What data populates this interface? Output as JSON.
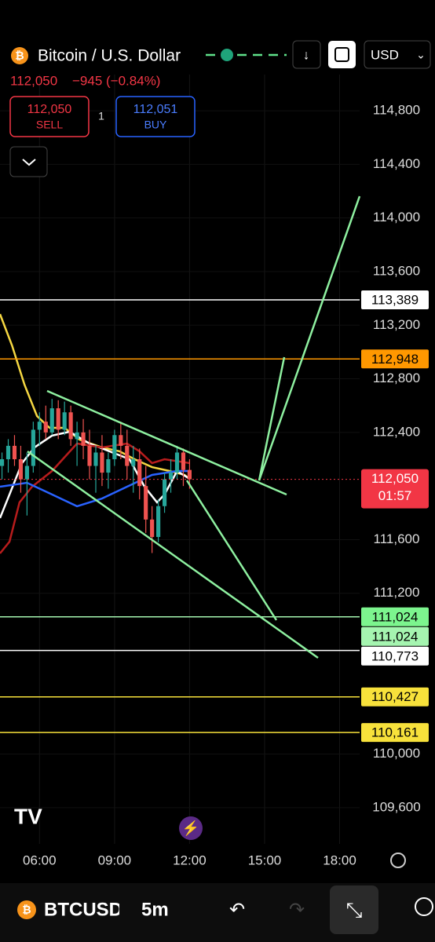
{
  "header": {
    "title": "Bitcoin / U.S. Dollar",
    "price": "112,050",
    "change": "−945 (−0.84%)",
    "sell_price": "112,050",
    "sell_label": "SELL",
    "spread": "1",
    "buy_price": "112,051",
    "buy_label": "BUY",
    "currency": "USD"
  },
  "chart_data": {
    "type": "candlestick",
    "x": [
      4.5,
      4.75,
      5.0,
      5.25,
      5.5,
      5.75,
      6.0,
      6.25,
      6.5,
      6.75,
      7.0,
      7.25,
      7.5,
      7.75,
      8.0,
      8.25,
      8.5,
      8.75,
      9.0,
      9.25,
      9.5,
      9.75,
      10.0,
      10.25,
      10.5,
      10.75,
      11.0,
      11.25,
      11.5,
      11.75,
      12.0
    ],
    "open": [
      112150,
      112200,
      112300,
      112200,
      112050,
      112150,
      112420,
      112480,
      112400,
      112580,
      112420,
      112550,
      112350,
      112400,
      112300,
      112150,
      112250,
      112100,
      112200,
      112380,
      112300,
      112150,
      112200,
      112000,
      111750,
      111620,
      111850,
      112050,
      112100,
      112250,
      112120
    ],
    "high": [
      112250,
      112350,
      112380,
      112300,
      112250,
      112480,
      112550,
      112600,
      112650,
      112640,
      112630,
      112600,
      112480,
      112500,
      112420,
      112300,
      112380,
      112250,
      112420,
      112480,
      112420,
      112300,
      112280,
      112150,
      111850,
      111900,
      112100,
      112200,
      112300,
      112280,
      112200
    ],
    "low": [
      112050,
      112100,
      112150,
      111950,
      111780,
      112100,
      112300,
      112350,
      112380,
      112350,
      112380,
      112300,
      112150,
      112200,
      112050,
      111950,
      112000,
      111980,
      112150,
      112200,
      112050,
      111950,
      111900,
      111650,
      111500,
      111580,
      111800,
      111950,
      112050,
      112000,
      111980
    ],
    "close": [
      112200,
      112300,
      112200,
      112050,
      112150,
      112420,
      112480,
      112400,
      112580,
      112420,
      112550,
      112350,
      112400,
      112300,
      112150,
      112250,
      112100,
      112200,
      112380,
      112300,
      112150,
      112200,
      112000,
      111750,
      111620,
      111850,
      112050,
      112100,
      112250,
      112120,
      112050
    ],
    "up_color": "#26a69a",
    "down_color": "#ef5350",
    "lines": [
      {
        "color": "#f5d742",
        "x": [
          4.42,
          4.9,
          5.4,
          5.9,
          6.4,
          7.0,
          7.6,
          8.5,
          9.2,
          9.8,
          10.5,
          11.2,
          11.8,
          12.0
        ],
        "values": [
          113283,
          113049,
          112756,
          112522,
          112434,
          112434,
          112346,
          112288,
          112259,
          112200,
          112141,
          112112,
          112083,
          112054
        ]
      },
      {
        "color": "#ffffff",
        "x": [
          4.42,
          4.8,
          5.3,
          5.8,
          6.5,
          7.2,
          8.0,
          8.8,
          9.6,
          10.2,
          10.7,
          11.0,
          11.5,
          12.0
        ],
        "values": [
          111761,
          111937,
          112171,
          112288,
          112376,
          112405,
          112317,
          112259,
          112200,
          111995,
          111878,
          111937,
          112112,
          112054
        ]
      },
      {
        "color": "#b71c1c",
        "x": [
          4.42,
          4.8,
          5.2,
          5.7,
          6.5,
          7.5,
          8.5,
          9.5,
          10.0,
          10.5,
          11.0,
          12.0
        ],
        "values": [
          111497,
          111585,
          111878,
          111995,
          112112,
          112317,
          112288,
          112317,
          112259,
          112171,
          112200,
          112171
        ]
      },
      {
        "color": "#2962ff",
        "x": [
          4.42,
          5.5,
          6.5,
          7.5,
          8.5,
          9.5,
          10.5,
          11.5,
          12.0
        ],
        "values": [
          111995,
          112024,
          111937,
          111849,
          111907,
          111995,
          112083,
          112112,
          112112
        ]
      }
    ],
    "levels": [
      {
        "value": 113389,
        "label": "113,389",
        "color": "#ffffff",
        "label_color": "#000000"
      },
      {
        "value": 112948,
        "label": "112,948",
        "color": "#ff9800",
        "label_color": "#000000"
      },
      {
        "value": 111024,
        "label": "111,024",
        "color": "#7cf58e",
        "label_color": "#000000"
      },
      {
        "value": 111024,
        "label": "111,024",
        "color": "#a5f5b0",
        "label_color": "#000000"
      },
      {
        "value": 110773,
        "label": "110,773",
        "color": "#ffffff",
        "label_color": "#000000"
      },
      {
        "value": 110427,
        "label": "110,427",
        "color": "#f7e13b",
        "label_color": "#000000"
      },
      {
        "value": 110161,
        "label": "110,161",
        "color": "#f7e13b",
        "label_color": "#000000"
      }
    ],
    "current": {
      "value": 112050,
      "label": "112,050",
      "countdown": "01:57",
      "color": "#f23645"
    },
    "xlim": [
      4.42,
      18.8
    ],
    "ylim": [
      109330,
      115070
    ],
    "xticks": [
      {
        "value": 6,
        "label": "06:00"
      },
      {
        "value": 9,
        "label": "09:00"
      },
      {
        "value": 12,
        "label": "12:00"
      },
      {
        "value": 15,
        "label": "15:00"
      },
      {
        "value": 18,
        "label": "18:00"
      }
    ],
    "yticks": [
      {
        "value": 114800,
        "label": "114,800"
      },
      {
        "value": 114400,
        "label": "114,400"
      },
      {
        "value": 114000,
        "label": "114,000"
      },
      {
        "value": 113600,
        "label": "113,600"
      },
      {
        "value": 113200,
        "label": "113,200"
      },
      {
        "value": 112800,
        "label": "112,800"
      },
      {
        "value": 112400,
        "label": "112,400"
      },
      {
        "value": 111600,
        "label": "111,600"
      },
      {
        "value": 111200,
        "label": "111,200"
      },
      {
        "value": 110000,
        "label": "110,000"
      },
      {
        "value": 109600,
        "label": "109,600"
      }
    ],
    "grid": true
  },
  "footer": {
    "symbol": "BTCUSD",
    "interval": "5m"
  }
}
